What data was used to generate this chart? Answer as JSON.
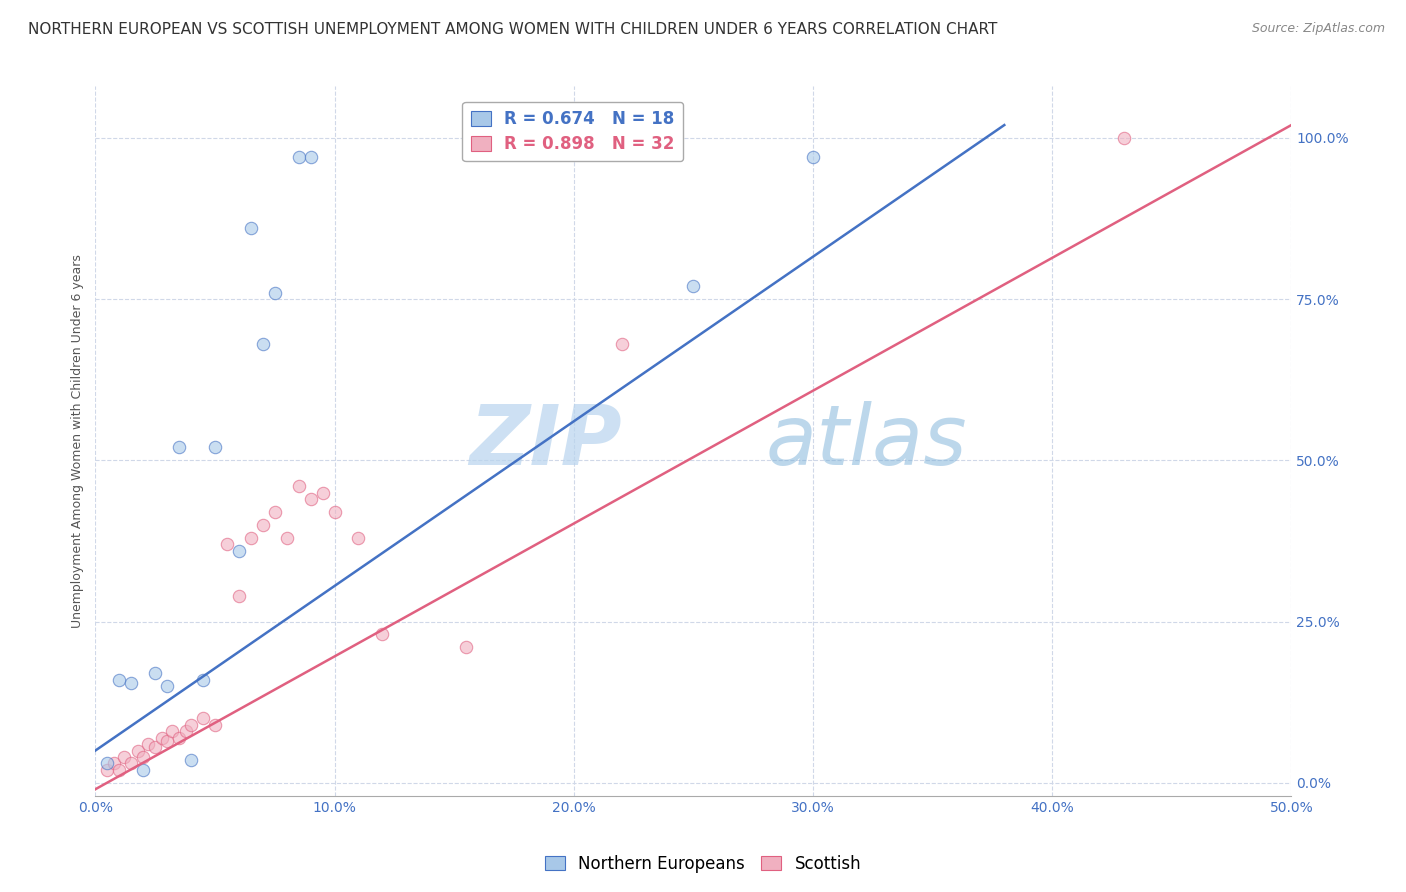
{
  "title": "NORTHERN EUROPEAN VS SCOTTISH UNEMPLOYMENT AMONG WOMEN WITH CHILDREN UNDER 6 YEARS CORRELATION CHART",
  "source": "Source: ZipAtlas.com",
  "ylabel": "Unemployment Among Women with Children Under 6 years",
  "blue_R": 0.674,
  "blue_N": 18,
  "pink_R": 0.898,
  "pink_N": 32,
  "blue_label": "Northern Europeans",
  "pink_label": "Scottish",
  "blue_color": "#a8c8e8",
  "pink_color": "#f0b0c0",
  "blue_line_color": "#4472c4",
  "pink_line_color": "#e06080",
  "watermark_zip": "ZIP",
  "watermark_atlas": "atlas",
  "background_color": "#ffffff",
  "grid_color": "#d0d8e8",
  "xlim": [
    0,
    0.5
  ],
  "ylim": [
    -0.02,
    1.08
  ],
  "blue_scatter_x": [
    0.005,
    0.01,
    0.015,
    0.02,
    0.025,
    0.03,
    0.035,
    0.04,
    0.045,
    0.05,
    0.06,
    0.065,
    0.07,
    0.075,
    0.085,
    0.09,
    0.25,
    0.3
  ],
  "blue_scatter_y": [
    0.03,
    0.16,
    0.155,
    0.02,
    0.17,
    0.15,
    0.52,
    0.035,
    0.16,
    0.52,
    0.36,
    0.86,
    0.68,
    0.76,
    0.97,
    0.97,
    0.77,
    0.97
  ],
  "pink_scatter_x": [
    0.005,
    0.008,
    0.01,
    0.012,
    0.015,
    0.018,
    0.02,
    0.022,
    0.025,
    0.028,
    0.03,
    0.032,
    0.035,
    0.038,
    0.04,
    0.045,
    0.05,
    0.055,
    0.06,
    0.065,
    0.07,
    0.075,
    0.08,
    0.085,
    0.09,
    0.095,
    0.1,
    0.11,
    0.12,
    0.155,
    0.22,
    0.43
  ],
  "pink_scatter_y": [
    0.02,
    0.03,
    0.02,
    0.04,
    0.03,
    0.05,
    0.04,
    0.06,
    0.055,
    0.07,
    0.065,
    0.08,
    0.07,
    0.08,
    0.09,
    0.1,
    0.09,
    0.37,
    0.29,
    0.38,
    0.4,
    0.42,
    0.38,
    0.46,
    0.44,
    0.45,
    0.42,
    0.38,
    0.23,
    0.21,
    0.68,
    1.0
  ],
  "blue_line_x0": 0.0,
  "blue_line_y0": 0.05,
  "blue_line_x1": 0.38,
  "blue_line_y1": 1.02,
  "pink_line_x0": 0.0,
  "pink_line_y0": -0.01,
  "pink_line_x1": 0.5,
  "pink_line_y1": 1.02,
  "title_fontsize": 11,
  "source_fontsize": 9,
  "axis_label_fontsize": 9,
  "tick_fontsize": 10,
  "legend_fontsize": 12,
  "marker_size": 80,
  "marker_alpha": 0.6,
  "line_width": 1.8
}
